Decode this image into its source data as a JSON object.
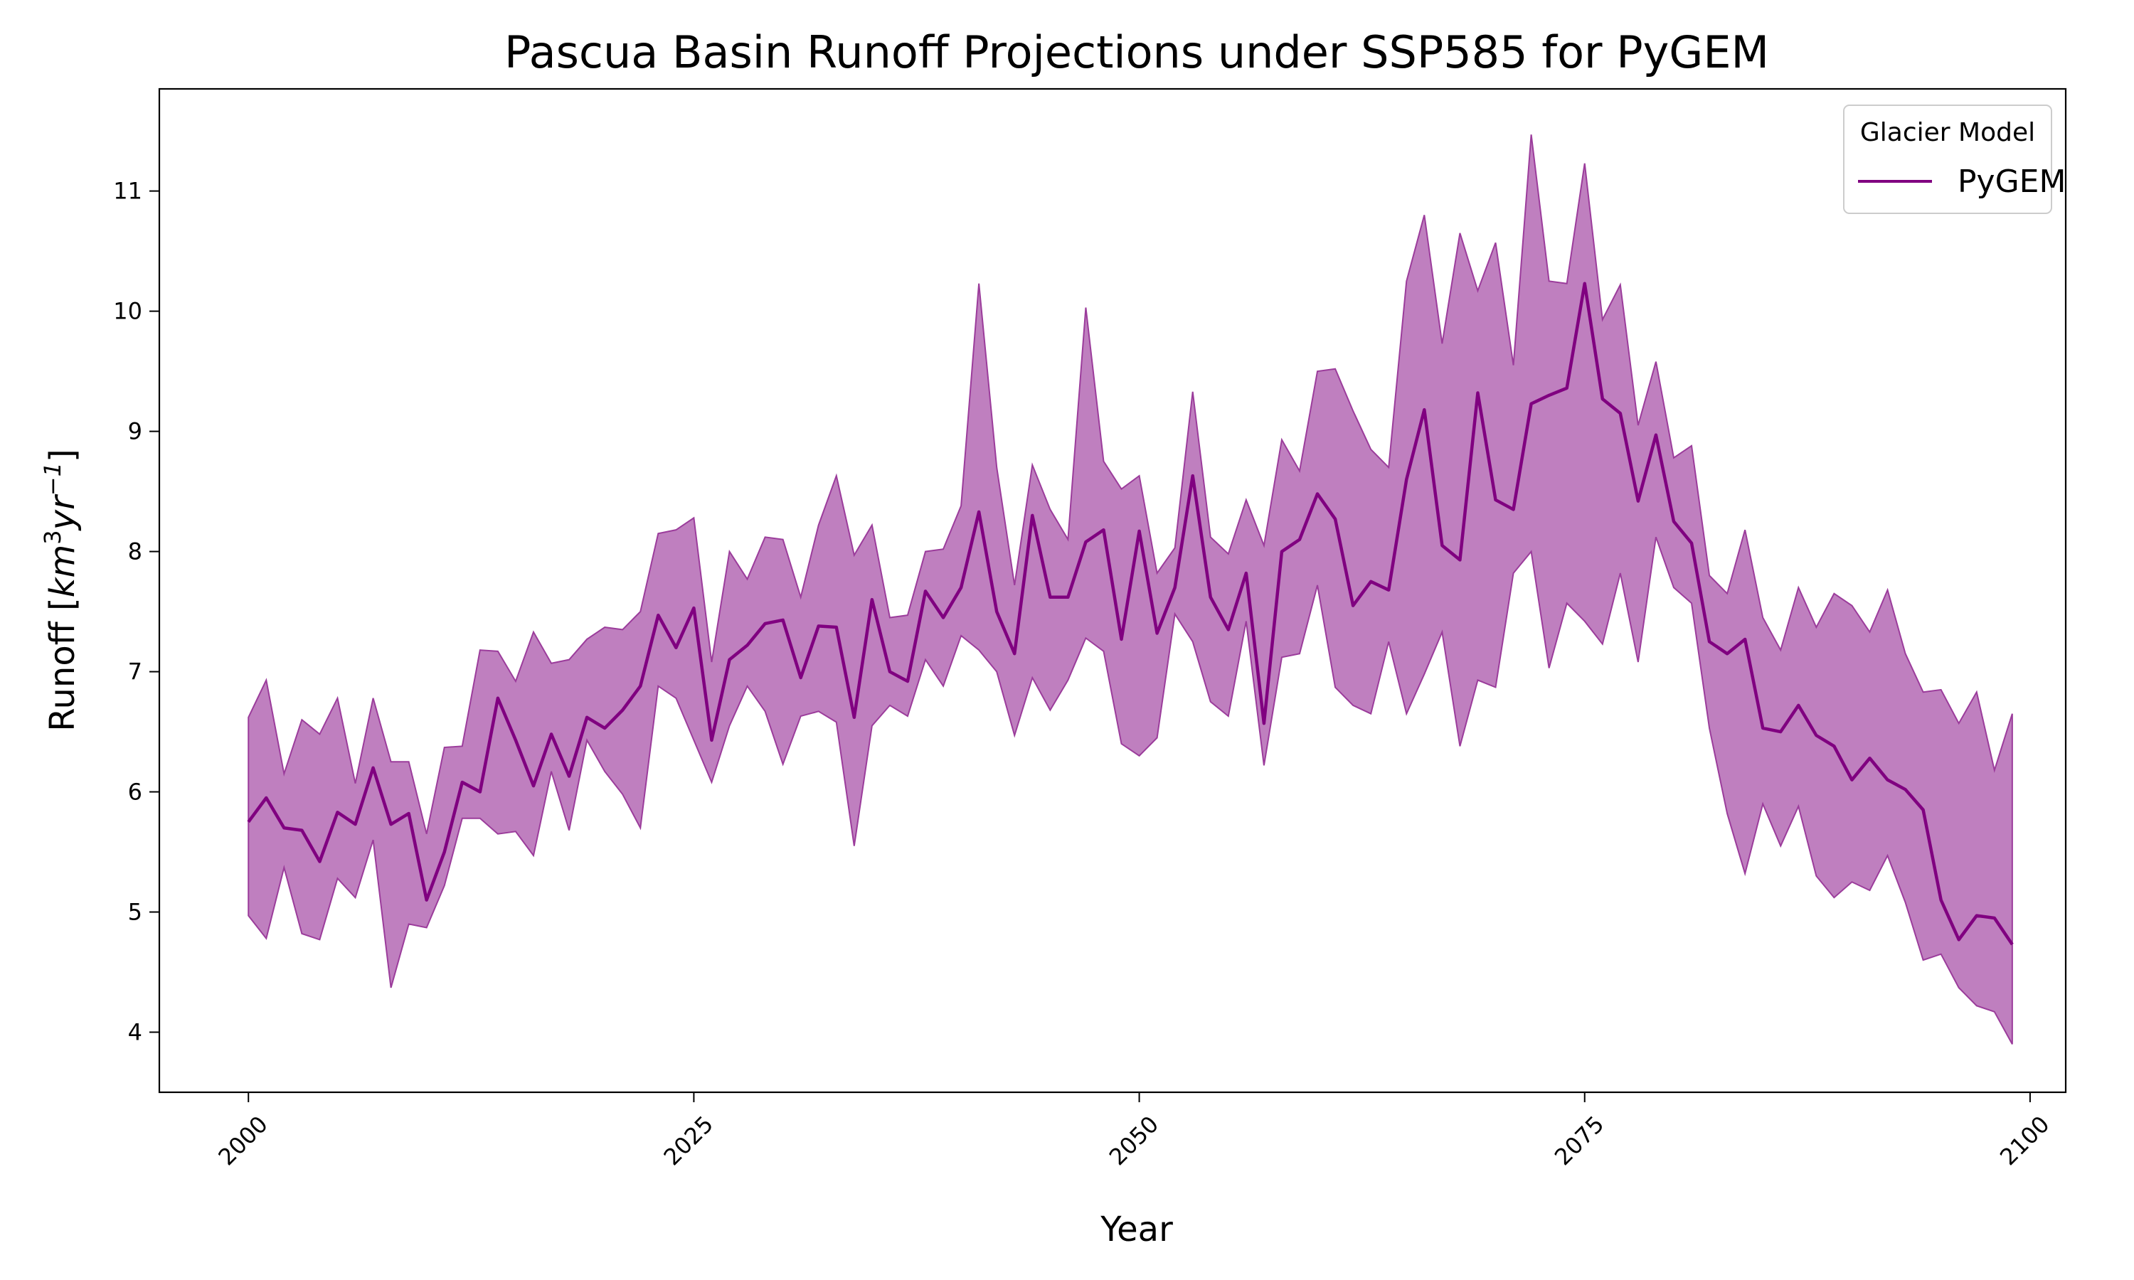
{
  "chart_data": {
    "type": "line",
    "title": "Pascua Basin Runoff Projections under SSP585 for PyGEM",
    "xlabel": "Year",
    "ylabel": "Runoff [km³yr⁻¹]",
    "ylabel_parts": {
      "prefix": "Runoff [",
      "km": "km",
      "exp3": "3",
      "yr": "yr",
      "expm1": "−1",
      "suffix": "]"
    },
    "xlim": [
      1995,
      2102
    ],
    "ylim": [
      3.5,
      11.85
    ],
    "xticks": [
      2000,
      2025,
      2050,
      2075,
      2100
    ],
    "yticks": [
      4,
      5,
      6,
      7,
      8,
      9,
      10,
      11
    ],
    "grid": false,
    "legend": {
      "title": "Glacier Model",
      "placement": "top-right"
    },
    "colors": {
      "line": "#800080",
      "band": "#bf7fbf",
      "band_edge": "#9b3c9b"
    },
    "x": [
      2000,
      2001,
      2002,
      2003,
      2004,
      2005,
      2006,
      2007,
      2008,
      2009,
      2010,
      2011,
      2012,
      2013,
      2014,
      2015,
      2016,
      2017,
      2018,
      2019,
      2020,
      2021,
      2022,
      2023,
      2024,
      2025,
      2026,
      2027,
      2028,
      2029,
      2030,
      2031,
      2032,
      2033,
      2034,
      2035,
      2036,
      2037,
      2038,
      2039,
      2040,
      2041,
      2042,
      2043,
      2044,
      2045,
      2046,
      2047,
      2048,
      2049,
      2050,
      2051,
      2052,
      2053,
      2054,
      2055,
      2056,
      2057,
      2058,
      2059,
      2060,
      2061,
      2062,
      2063,
      2064,
      2065,
      2066,
      2067,
      2068,
      2069,
      2070,
      2071,
      2072,
      2073,
      2074,
      2075,
      2076,
      2077,
      2078,
      2079,
      2080,
      2081,
      2082,
      2083,
      2084,
      2085,
      2086,
      2087,
      2088,
      2089,
      2090,
      2091,
      2092,
      2093,
      2094,
      2095,
      2096,
      2097,
      2098,
      2099
    ],
    "series": [
      {
        "name": "PyGEM",
        "values": [
          5.75,
          5.95,
          5.7,
          5.68,
          5.42,
          5.83,
          5.73,
          6.2,
          5.73,
          5.82,
          5.1,
          5.5,
          6.08,
          6.0,
          6.78,
          6.43,
          6.05,
          6.48,
          6.13,
          6.62,
          6.53,
          6.68,
          6.88,
          7.47,
          7.2,
          7.53,
          6.43,
          7.1,
          7.22,
          7.4,
          7.43,
          6.95,
          7.38,
          7.37,
          6.62,
          7.6,
          7.0,
          6.92,
          7.67,
          7.45,
          7.7,
          8.33,
          7.5,
          7.15,
          8.3,
          7.62,
          7.62,
          8.08,
          8.18,
          7.27,
          8.17,
          7.32,
          7.7,
          8.63,
          7.62,
          7.35,
          7.82,
          6.57,
          8.0,
          8.1,
          8.48,
          8.27,
          7.55,
          7.75,
          7.68,
          8.6,
          9.18,
          8.05,
          7.93,
          9.32,
          8.43,
          8.35,
          9.23,
          9.3,
          9.36,
          10.23,
          9.27,
          9.15,
          8.42,
          8.97,
          8.25,
          8.07,
          7.25,
          7.15,
          7.27,
          6.53,
          6.5,
          6.72,
          6.47,
          6.38,
          6.1,
          6.28,
          6.1,
          6.02,
          5.85,
          5.1,
          4.77,
          4.97,
          4.95,
          4.73
        ]
      }
    ],
    "band": {
      "upper": [
        6.62,
        6.93,
        6.15,
        6.6,
        6.48,
        6.78,
        6.07,
        6.78,
        6.25,
        6.25,
        5.65,
        6.37,
        6.38,
        7.18,
        7.17,
        6.92,
        7.33,
        7.07,
        7.1,
        7.27,
        7.37,
        7.35,
        7.5,
        8.15,
        8.18,
        8.28,
        7.08,
        8.0,
        7.77,
        8.12,
        8.1,
        7.62,
        8.22,
        8.63,
        7.97,
        8.22,
        7.45,
        7.47,
        8.0,
        8.02,
        8.38,
        10.23,
        8.7,
        7.72,
        8.72,
        8.35,
        8.1,
        10.03,
        8.75,
        8.52,
        8.63,
        7.82,
        8.03,
        9.33,
        8.12,
        7.98,
        8.43,
        8.05,
        8.93,
        8.67,
        9.5,
        9.52,
        9.17,
        8.85,
        8.7,
        10.25,
        10.8,
        9.73,
        10.65,
        10.17,
        10.57,
        9.55,
        11.47,
        10.25,
        10.23,
        11.23,
        9.93,
        10.22,
        9.05,
        9.58,
        8.78,
        8.88,
        7.8,
        7.65,
        8.18,
        7.45,
        7.18,
        7.7,
        7.37,
        7.65,
        7.55,
        7.33,
        7.68,
        7.15,
        6.83,
        6.85,
        6.57,
        6.83,
        6.18,
        6.65
      ],
      "lower": [
        4.97,
        4.78,
        5.37,
        4.82,
        4.77,
        5.28,
        5.12,
        5.6,
        4.37,
        4.9,
        4.87,
        5.22,
        5.78,
        5.78,
        5.65,
        5.67,
        5.47,
        6.17,
        5.68,
        6.43,
        6.17,
        5.98,
        5.7,
        6.88,
        6.78,
        6.43,
        6.08,
        6.55,
        6.88,
        6.67,
        6.23,
        6.63,
        6.67,
        6.58,
        5.55,
        6.55,
        6.72,
        6.63,
        7.1,
        6.88,
        7.3,
        7.18,
        7.0,
        6.47,
        6.95,
        6.68,
        6.93,
        7.28,
        7.17,
        6.4,
        6.3,
        6.45,
        7.48,
        7.25,
        6.75,
        6.63,
        7.42,
        6.22,
        7.12,
        7.15,
        7.72,
        6.87,
        6.72,
        6.65,
        7.25,
        6.65,
        6.98,
        7.33,
        6.38,
        6.93,
        6.87,
        7.82,
        8.0,
        7.03,
        7.57,
        7.42,
        7.23,
        7.82,
        7.08,
        8.12,
        7.7,
        7.57,
        6.53,
        5.82,
        5.32,
        5.9,
        5.55,
        5.88,
        5.3,
        5.12,
        5.25,
        5.18,
        5.47,
        5.08,
        4.6,
        4.65,
        4.37,
        4.22,
        4.17,
        3.9
      ]
    }
  }
}
